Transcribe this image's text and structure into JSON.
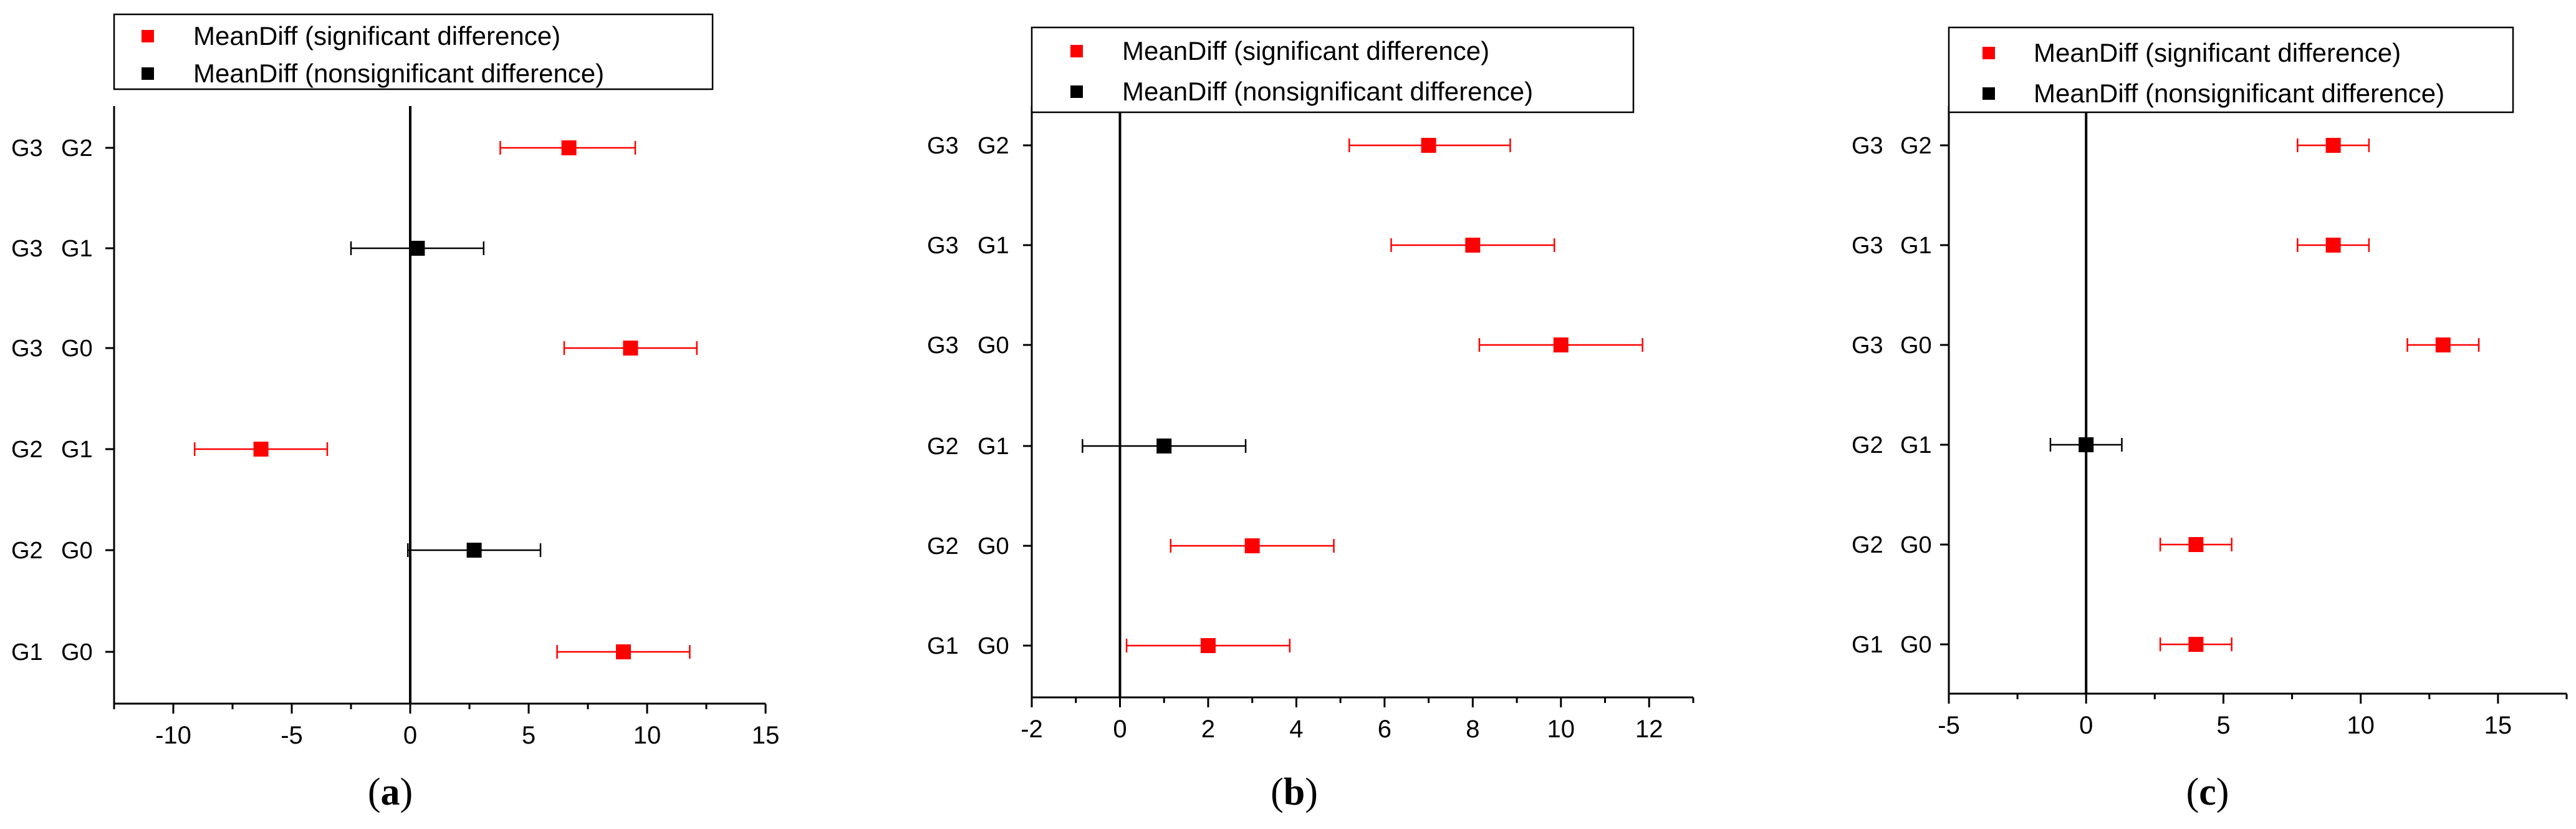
{
  "colors": {
    "significant": "#ff0000",
    "nonsignificant": "#000000",
    "axis": "#000000",
    "background": "#ffffff"
  },
  "chart_data": [
    {
      "type": "scatter",
      "subtype": "mean-difference interval plot",
      "caption": {
        "open": "(",
        "letter": "a",
        "close": ")"
      },
      "legend": {
        "placement": "top",
        "entries": [
          {
            "label": "MeanDiff (significant difference)",
            "color": "#ff0000"
          },
          {
            "label": "MeanDiff (nonsignificant difference)",
            "color": "#000000"
          }
        ]
      },
      "xlim": [
        -12.5,
        15
      ],
      "xticks": [
        -10,
        -5,
        0,
        5,
        10,
        15
      ],
      "xtick_labels": [
        "-10",
        "-5",
        "0",
        "5",
        "10",
        "15"
      ],
      "categories": [
        {
          "a": "G3",
          "b": "G2"
        },
        {
          "a": "G3",
          "b": "G1"
        },
        {
          "a": "G3",
          "b": "G0"
        },
        {
          "a": "G2",
          "b": "G1"
        },
        {
          "a": "G2",
          "b": "G0"
        },
        {
          "a": "G1",
          "b": "G0"
        }
      ],
      "points": [
        {
          "mean": 6.7,
          "lower": 3.8,
          "upper": 9.5,
          "significant": true
        },
        {
          "mean": 0.3,
          "lower": -2.5,
          "upper": 3.1,
          "significant": false
        },
        {
          "mean": 9.3,
          "lower": 6.5,
          "upper": 12.1,
          "significant": true
        },
        {
          "mean": -6.3,
          "lower": -9.1,
          "upper": -3.5,
          "significant": true
        },
        {
          "mean": 2.7,
          "lower": -0.1,
          "upper": 5.5,
          "significant": false
        },
        {
          "mean": 9.0,
          "lower": 6.2,
          "upper": 11.8,
          "significant": true
        }
      ]
    },
    {
      "type": "scatter",
      "subtype": "mean-difference interval plot",
      "caption": {
        "open": "(",
        "letter": "b",
        "close": ")"
      },
      "legend": {
        "placement": "top",
        "entries": [
          {
            "label": "MeanDiff (significant difference)",
            "color": "#ff0000"
          },
          {
            "label": "MeanDiff (nonsignificant difference)",
            "color": "#000000"
          }
        ]
      },
      "xlim": [
        -2,
        13
      ],
      "xticks": [
        -2,
        0,
        2,
        4,
        6,
        8,
        10,
        12
      ],
      "xtick_labels": [
        "-2",
        "0",
        "2",
        "4",
        "6",
        "8",
        "10",
        "12"
      ],
      "categories": [
        {
          "a": "G3",
          "b": "G2"
        },
        {
          "a": "G3",
          "b": "G1"
        },
        {
          "a": "G3",
          "b": "G0"
        },
        {
          "a": "G2",
          "b": "G1"
        },
        {
          "a": "G2",
          "b": "G0"
        },
        {
          "a": "G1",
          "b": "G0"
        }
      ],
      "points": [
        {
          "mean": 7.0,
          "lower": 5.2,
          "upper": 8.85,
          "significant": true
        },
        {
          "mean": 8.0,
          "lower": 6.15,
          "upper": 9.85,
          "significant": true
        },
        {
          "mean": 10.0,
          "lower": 8.15,
          "upper": 11.85,
          "significant": true
        },
        {
          "mean": 1.0,
          "lower": -0.85,
          "upper": 2.85,
          "significant": false
        },
        {
          "mean": 3.0,
          "lower": 1.15,
          "upper": 4.85,
          "significant": true
        },
        {
          "mean": 2.0,
          "lower": 0.15,
          "upper": 3.85,
          "significant": true
        }
      ]
    },
    {
      "type": "scatter",
      "subtype": "mean-difference interval plot",
      "caption": {
        "open": "(",
        "letter": "c",
        "close": ")"
      },
      "legend": {
        "placement": "top",
        "entries": [
          {
            "label": "MeanDiff (significant difference)",
            "color": "#ff0000"
          },
          {
            "label": "MeanDiff (nonsignificant difference)",
            "color": "#000000"
          }
        ]
      },
      "xlim": [
        -5,
        17.5
      ],
      "xticks": [
        -5,
        0,
        5,
        10,
        15
      ],
      "xtick_labels": [
        "-5",
        "0",
        "5",
        "10",
        "15"
      ],
      "categories": [
        {
          "a": "G3",
          "b": "G2"
        },
        {
          "a": "G3",
          "b": "G1"
        },
        {
          "a": "G3",
          "b": "G0"
        },
        {
          "a": "G2",
          "b": "G1"
        },
        {
          "a": "G2",
          "b": "G0"
        },
        {
          "a": "G1",
          "b": "G0"
        }
      ],
      "points": [
        {
          "mean": 9.0,
          "lower": 7.7,
          "upper": 10.3,
          "significant": true
        },
        {
          "mean": 9.0,
          "lower": 7.7,
          "upper": 10.3,
          "significant": true
        },
        {
          "mean": 13.0,
          "lower": 11.7,
          "upper": 14.3,
          "significant": true
        },
        {
          "mean": 0.0,
          "lower": -1.3,
          "upper": 1.3,
          "significant": false
        },
        {
          "mean": 4.0,
          "lower": 2.7,
          "upper": 5.3,
          "significant": true
        },
        {
          "mean": 4.0,
          "lower": 2.7,
          "upper": 5.3,
          "significant": true
        }
      ]
    }
  ]
}
